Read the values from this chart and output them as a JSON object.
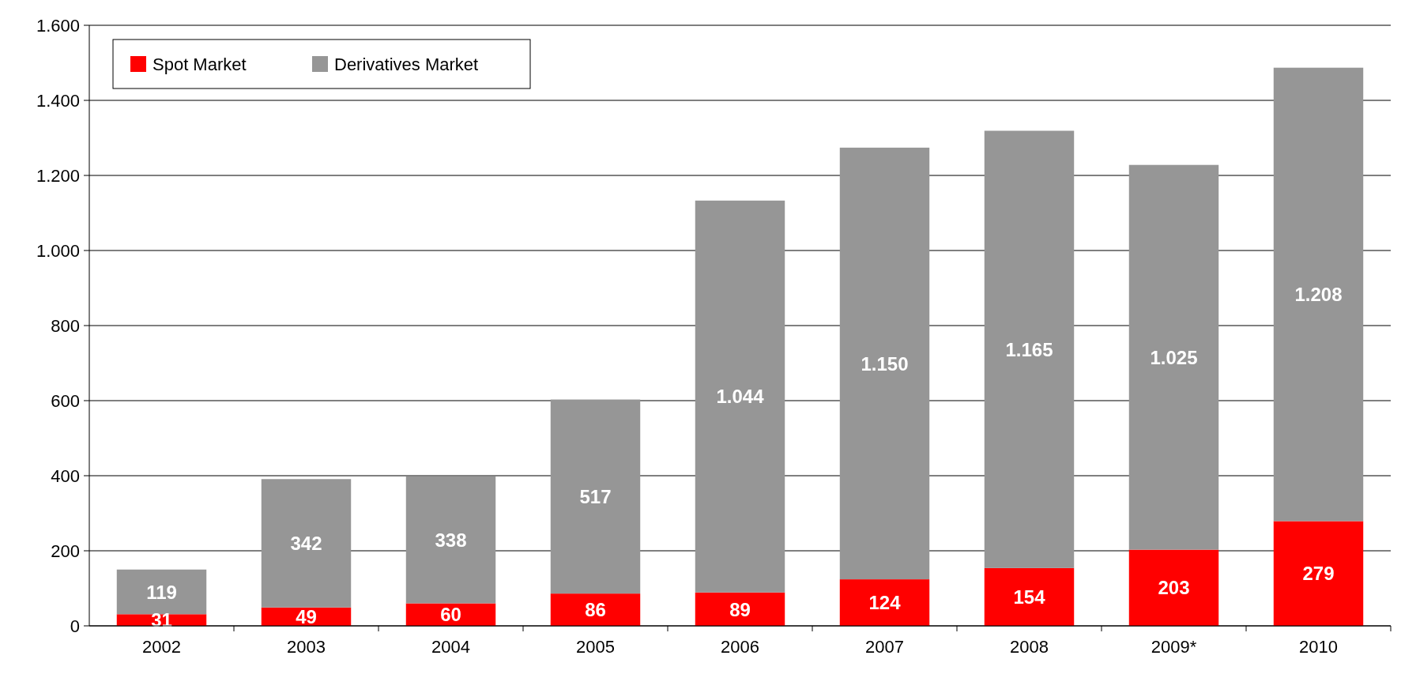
{
  "chart_data": {
    "type": "bar",
    "stacked": true,
    "categories": [
      "2002",
      "2003",
      "2004",
      "2005",
      "2006",
      "2007",
      "2008",
      "2009*",
      "2010"
    ],
    "series": [
      {
        "name": "Spot Market",
        "color": "#ff0000",
        "values": [
          31,
          49,
          60,
          86,
          89,
          124,
          154,
          203,
          279
        ],
        "value_labels": [
          "31",
          "49",
          "60",
          "86",
          "89",
          "124",
          "154",
          "203",
          "279"
        ]
      },
      {
        "name": "Derivatives Market",
        "color": "#969696",
        "values": [
          119,
          342,
          338,
          517,
          1044,
          1150,
          1165,
          1025,
          1208
        ],
        "value_labels": [
          "119",
          "342",
          "338",
          "517",
          "1.044",
          "1.150",
          "1.165",
          "1.025",
          "1.208"
        ]
      }
    ],
    "ylim": [
      0,
      1600
    ],
    "yticks": [
      0,
      {
        "value": 200,
        "label": "200"
      },
      400,
      600,
      800,
      {
        "value": 1000,
        "label": "1.000"
      },
      {
        "value": 1200,
        "label": "1.200"
      },
      {
        "value": 1400,
        "label": "1.400"
      },
      {
        "value": 1600,
        "label": "1.600"
      }
    ],
    "grid": "y",
    "legend": "top left"
  }
}
